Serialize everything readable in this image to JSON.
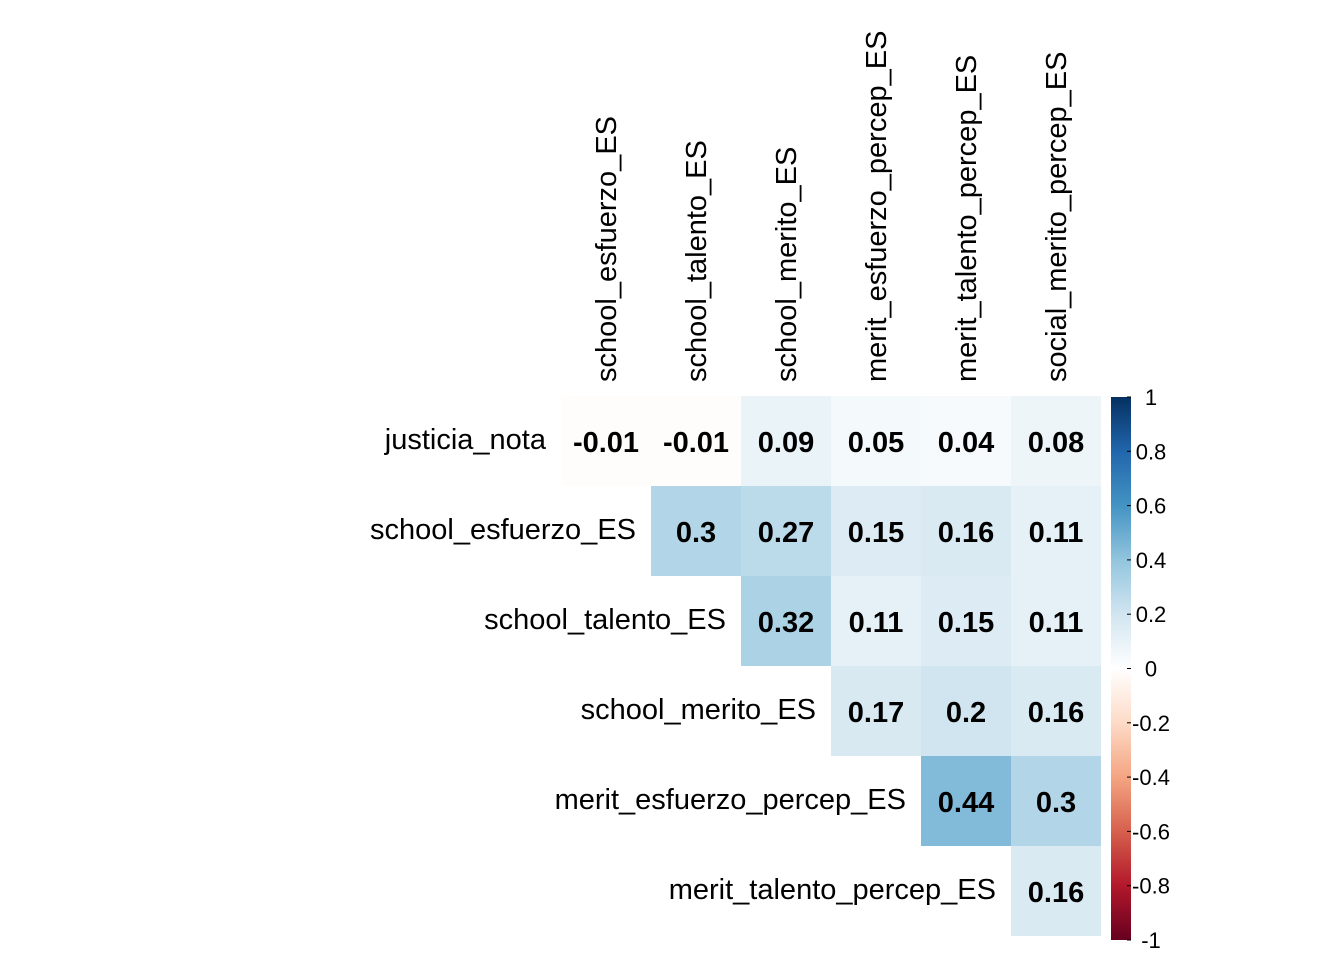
{
  "chart_data": {
    "type": "heatmap",
    "title": "",
    "row_labels": [
      "justicia_nota",
      "school_esfuerzo_ES",
      "school_talento_ES",
      "school_merito_ES",
      "merit_esfuerzo_percep_ES",
      "merit_talento_percep_ES"
    ],
    "col_labels": [
      "school_esfuerzo_ES",
      "school_talento_ES",
      "school_merito_ES",
      "merit_esfuerzo_percep_ES",
      "merit_talento_percep_ES",
      "social_merito_percep_ES"
    ],
    "values": [
      [
        -0.01,
        -0.01,
        0.09,
        0.05,
        0.04,
        0.08
      ],
      [
        null,
        0.3,
        0.27,
        0.15,
        0.16,
        0.11
      ],
      [
        null,
        null,
        0.32,
        0.11,
        0.15,
        0.11
      ],
      [
        null,
        null,
        null,
        0.17,
        0.2,
        0.16
      ],
      [
        null,
        null,
        null,
        null,
        0.44,
        0.3
      ],
      [
        null,
        null,
        null,
        null,
        null,
        0.16
      ]
    ],
    "cell_text": [
      [
        "-0.01",
        "-0.01",
        "0.09",
        "0.05",
        "0.04",
        "0.08"
      ],
      [
        null,
        "0.3",
        "0.27",
        "0.15",
        "0.16",
        "0.11"
      ],
      [
        null,
        null,
        "0.32",
        "0.11",
        "0.15",
        "0.11"
      ],
      [
        null,
        null,
        null,
        "0.17",
        "0.2",
        "0.16"
      ],
      [
        null,
        null,
        null,
        null,
        "0.44",
        "0.3"
      ],
      [
        null,
        null,
        null,
        null,
        null,
        "0.16"
      ]
    ],
    "color_scale": {
      "range": [
        -1,
        1
      ],
      "ticks": [
        "1",
        "0.8",
        "0.6",
        "0.4",
        "0.2",
        "0",
        "-0.2",
        "-0.4",
        "-0.6",
        "-0.8",
        "-1"
      ],
      "tick_values": [
        1,
        0.8,
        0.6,
        0.4,
        0.2,
        0,
        -0.2,
        -0.4,
        -0.6,
        -0.8,
        -1
      ],
      "colors": [
        "#67001F",
        "#B2182B",
        "#D6604D",
        "#F4A582",
        "#FDDBC7",
        "#FFFFFF",
        "#D1E5F0",
        "#92C5DE",
        "#4393C3",
        "#2166AC",
        "#053061"
      ]
    },
    "legend_position": "right"
  }
}
